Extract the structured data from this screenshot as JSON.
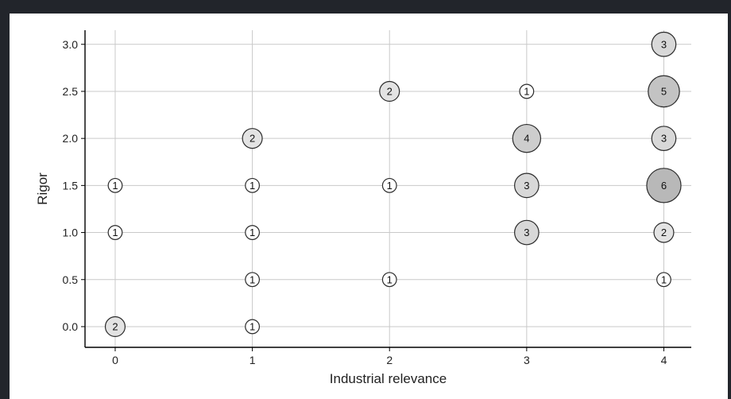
{
  "chart_data": {
    "type": "scatter",
    "title": "",
    "xlabel": "Industrial relevance",
    "ylabel": "Rigor",
    "xlim": [
      -0.22,
      4.2
    ],
    "ylim": [
      -0.22,
      3.15
    ],
    "x_ticks": [
      0,
      1,
      2,
      3,
      4
    ],
    "x_tick_labels": [
      "0",
      "1",
      "2",
      "3",
      "4"
    ],
    "y_ticks": [
      0.0,
      0.5,
      1.0,
      1.5,
      2.0,
      2.5,
      3.0
    ],
    "y_tick_labels": [
      "0.0",
      "0.5",
      "1.0",
      "1.5",
      "2.0",
      "2.5",
      "3.0"
    ],
    "grid": true,
    "size_encoding": "count",
    "points": [
      {
        "x": 0,
        "y": 0.0,
        "count": 2
      },
      {
        "x": 0,
        "y": 1.0,
        "count": 1
      },
      {
        "x": 0,
        "y": 1.5,
        "count": 1
      },
      {
        "x": 1,
        "y": 0.0,
        "count": 1
      },
      {
        "x": 1,
        "y": 0.5,
        "count": 1
      },
      {
        "x": 1,
        "y": 1.0,
        "count": 1
      },
      {
        "x": 1,
        "y": 1.5,
        "count": 1
      },
      {
        "x": 1,
        "y": 2.0,
        "count": 2
      },
      {
        "x": 2,
        "y": 0.5,
        "count": 1
      },
      {
        "x": 2,
        "y": 1.5,
        "count": 1
      },
      {
        "x": 2,
        "y": 2.5,
        "count": 2
      },
      {
        "x": 3,
        "y": 1.0,
        "count": 3
      },
      {
        "x": 3,
        "y": 1.5,
        "count": 3
      },
      {
        "x": 3,
        "y": 2.0,
        "count": 4
      },
      {
        "x": 3,
        "y": 2.5,
        "count": 1
      },
      {
        "x": 4,
        "y": 0.5,
        "count": 1
      },
      {
        "x": 4,
        "y": 1.0,
        "count": 2
      },
      {
        "x": 4,
        "y": 1.5,
        "count": 6
      },
      {
        "x": 4,
        "y": 2.0,
        "count": 3
      },
      {
        "x": 4,
        "y": 2.5,
        "count": 5
      },
      {
        "x": 4,
        "y": 3.0,
        "count": 3
      }
    ],
    "fill_scale": [
      "#ffffff",
      "#b8b8b8"
    ]
  }
}
